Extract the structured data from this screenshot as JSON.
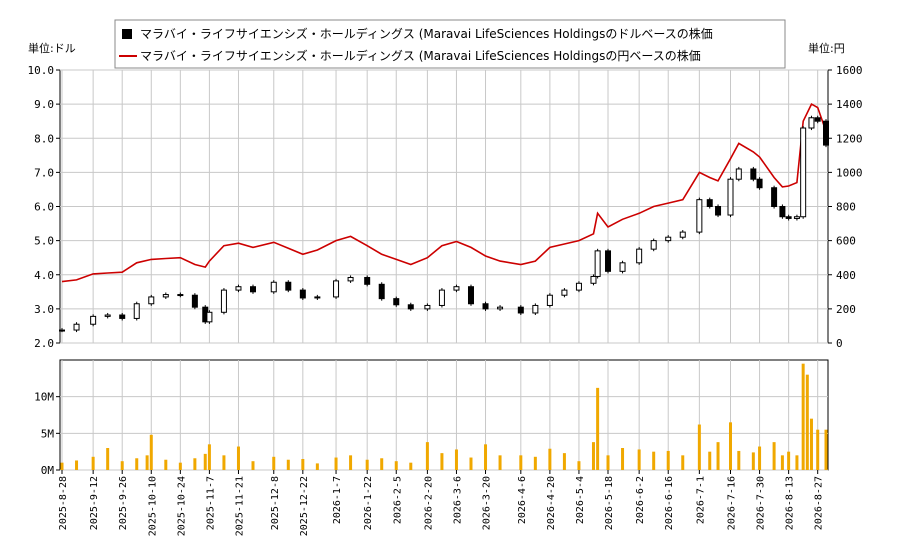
{
  "chart_data": {
    "type": "line",
    "legend": {
      "entries": [
        "マラバイ・ライフサイエンシズ・ホールディングス (Maravai LifeSciences Holdingsのドルベースの株価",
        "マラバイ・ライフサイエンシズ・ホールディングス (Maravai LifeSciences Holdingsの円ベースの株価"
      ],
      "placement": "top"
    },
    "units": {
      "left": "単位:ドル",
      "right": "単位:円"
    },
    "colors": {
      "usd_candle": "#000000",
      "jpy_line": "#cc0000",
      "volume": "#f0a800",
      "grid": "#c8c8c8"
    },
    "price_axis": {
      "ylim": [
        2.0,
        10.0
      ],
      "ticks": [
        "2.0",
        "3.0",
        "4.0",
        "5.0",
        "6.0",
        "7.0",
        "8.0",
        "9.0",
        "10.0"
      ],
      "tick_values": [
        2,
        3,
        4,
        5,
        6,
        7,
        8,
        9,
        10
      ]
    },
    "yen_axis": {
      "ylim": [
        0,
        1600
      ],
      "ticks": [
        "0",
        "200",
        "400",
        "600",
        "800",
        "1000",
        "1200",
        "1400",
        "1600"
      ],
      "tick_values": [
        0,
        200,
        400,
        600,
        800,
        1000,
        1200,
        1400,
        1600
      ]
    },
    "volume_axis": {
      "ylim": [
        0,
        15
      ],
      "ticks": [
        "0M",
        "5M",
        "10M"
      ],
      "tick_values": [
        0,
        5,
        10
      ]
    },
    "x_range": [
      "2025-08-28",
      "2026-08-31"
    ],
    "date_ticks": [
      "2025-8-28",
      "2025-9-12",
      "2025-9-26",
      "2025-10-10",
      "2025-10-24",
      "2025-11-7",
      "2025-11-21",
      "2025-12-8",
      "2025-12-22",
      "2026-1-7",
      "2026-1-22",
      "2026-2-5",
      "2026-2-20",
      "2026-3-6",
      "2026-3-20",
      "2026-4-6",
      "2026-4-20",
      "2026-5-4",
      "2026-5-18",
      "2026-6-2",
      "2026-6-16",
      "2026-7-1",
      "2026-7-16",
      "2026-7-30",
      "2026-8-13",
      "2026-8-27"
    ],
    "date_tick_values": [
      "2025-08-28",
      "2025-09-12",
      "2025-09-26",
      "2025-10-10",
      "2025-10-24",
      "2025-11-07",
      "2025-11-21",
      "2025-12-08",
      "2025-12-22",
      "2026-01-07",
      "2026-01-22",
      "2026-02-05",
      "2026-02-20",
      "2026-03-06",
      "2026-03-20",
      "2026-04-06",
      "2026-04-20",
      "2026-05-04",
      "2026-05-18",
      "2026-06-02",
      "2026-06-16",
      "2026-07-01",
      "2026-07-16",
      "2026-07-30",
      "2026-08-13",
      "2026-08-27"
    ],
    "series": [
      {
        "name": "マラバイ・ライフサイエンシズ・ホールディングス (Maravai LifeSciences Holdingsのドルベースの株価",
        "unit": "USD",
        "points": [
          [
            "2025-08-28",
            2.38
          ],
          [
            "2025-09-04",
            2.55
          ],
          [
            "2025-09-12",
            2.78
          ],
          [
            "2025-09-19",
            2.82
          ],
          [
            "2025-09-26",
            2.72
          ],
          [
            "2025-10-03",
            3.15
          ],
          [
            "2025-10-10",
            3.35
          ],
          [
            "2025-10-17",
            3.42
          ],
          [
            "2025-10-24",
            3.4
          ],
          [
            "2025-10-31",
            3.05
          ],
          [
            "2025-11-05",
            2.62
          ],
          [
            "2025-11-07",
            2.9
          ],
          [
            "2025-11-14",
            3.55
          ],
          [
            "2025-11-21",
            3.65
          ],
          [
            "2025-11-28",
            3.5
          ],
          [
            "2025-12-08",
            3.78
          ],
          [
            "2025-12-15",
            3.55
          ],
          [
            "2025-12-22",
            3.32
          ],
          [
            "2025-12-29",
            3.35
          ],
          [
            "2026-01-07",
            3.82
          ],
          [
            "2026-01-14",
            3.92
          ],
          [
            "2026-01-22",
            3.72
          ],
          [
            "2026-01-29",
            3.3
          ],
          [
            "2026-02-05",
            3.12
          ],
          [
            "2026-02-12",
            3.0
          ],
          [
            "2026-02-20",
            3.1
          ],
          [
            "2026-02-27",
            3.55
          ],
          [
            "2026-03-06",
            3.65
          ],
          [
            "2026-03-13",
            3.15
          ],
          [
            "2026-03-20",
            3.0
          ],
          [
            "2026-03-27",
            3.05
          ],
          [
            "2026-04-06",
            2.88
          ],
          [
            "2026-04-13",
            3.1
          ],
          [
            "2026-04-20",
            3.4
          ],
          [
            "2026-04-27",
            3.55
          ],
          [
            "2026-05-04",
            3.75
          ],
          [
            "2026-05-11",
            3.95
          ],
          [
            "2026-05-13",
            4.7
          ],
          [
            "2026-05-18",
            4.1
          ],
          [
            "2026-05-25",
            4.35
          ],
          [
            "2026-06-02",
            4.75
          ],
          [
            "2026-06-09",
            5.0
          ],
          [
            "2026-06-16",
            5.1
          ],
          [
            "2026-06-23",
            5.25
          ],
          [
            "2026-07-01",
            6.2
          ],
          [
            "2026-07-06",
            6.0
          ],
          [
            "2026-07-10",
            5.75
          ],
          [
            "2026-07-16",
            6.8
          ],
          [
            "2026-07-20",
            7.1
          ],
          [
            "2026-07-27",
            6.8
          ],
          [
            "2026-07-30",
            6.55
          ],
          [
            "2026-08-06",
            6.0
          ],
          [
            "2026-08-10",
            5.7
          ],
          [
            "2026-08-13",
            5.65
          ],
          [
            "2026-08-17",
            5.7
          ],
          [
            "2026-08-20",
            8.3
          ],
          [
            "2026-08-24",
            8.6
          ],
          [
            "2026-08-27",
            8.5
          ],
          [
            "2026-08-31",
            7.8
          ]
        ]
      },
      {
        "name": "マラバイ・ライフサイエンシズ・ホールディングス (Maravai LifeSciences Holdingsの円ベースの株価",
        "unit": "JPY",
        "points": [
          [
            "2025-08-28",
            360
          ],
          [
            "2025-09-04",
            370
          ],
          [
            "2025-09-12",
            405
          ],
          [
            "2025-09-19",
            410
          ],
          [
            "2025-09-26",
            415
          ],
          [
            "2025-10-03",
            470
          ],
          [
            "2025-10-10",
            490
          ],
          [
            "2025-10-17",
            495
          ],
          [
            "2025-10-24",
            500
          ],
          [
            "2025-10-31",
            460
          ],
          [
            "2025-11-05",
            445
          ],
          [
            "2025-11-07",
            480
          ],
          [
            "2025-11-14",
            570
          ],
          [
            "2025-11-21",
            585
          ],
          [
            "2025-11-28",
            560
          ],
          [
            "2025-12-08",
            590
          ],
          [
            "2025-12-15",
            555
          ],
          [
            "2025-12-22",
            520
          ],
          [
            "2025-12-29",
            545
          ],
          [
            "2026-01-07",
            600
          ],
          [
            "2026-01-14",
            625
          ],
          [
            "2026-01-22",
            570
          ],
          [
            "2026-01-29",
            520
          ],
          [
            "2026-02-05",
            490
          ],
          [
            "2026-02-12",
            460
          ],
          [
            "2026-02-20",
            500
          ],
          [
            "2026-02-27",
            570
          ],
          [
            "2026-03-06",
            595
          ],
          [
            "2026-03-13",
            560
          ],
          [
            "2026-03-20",
            510
          ],
          [
            "2026-03-27",
            480
          ],
          [
            "2026-04-06",
            460
          ],
          [
            "2026-04-13",
            480
          ],
          [
            "2026-04-20",
            560
          ],
          [
            "2026-04-27",
            580
          ],
          [
            "2026-05-04",
            600
          ],
          [
            "2026-05-11",
            640
          ],
          [
            "2026-05-13",
            760
          ],
          [
            "2026-05-18",
            680
          ],
          [
            "2026-05-25",
            725
          ],
          [
            "2026-06-02",
            760
          ],
          [
            "2026-06-09",
            800
          ],
          [
            "2026-06-16",
            820
          ],
          [
            "2026-06-23",
            840
          ],
          [
            "2026-07-01",
            1000
          ],
          [
            "2026-07-06",
            970
          ],
          [
            "2026-07-10",
            950
          ],
          [
            "2026-07-16",
            1080
          ],
          [
            "2026-07-20",
            1170
          ],
          [
            "2026-07-27",
            1120
          ],
          [
            "2026-07-30",
            1090
          ],
          [
            "2026-08-06",
            970
          ],
          [
            "2026-08-10",
            915
          ],
          [
            "2026-08-13",
            920
          ],
          [
            "2026-08-17",
            940
          ],
          [
            "2026-08-20",
            1300
          ],
          [
            "2026-08-24",
            1400
          ],
          [
            "2026-08-27",
            1380
          ],
          [
            "2026-08-31",
            1240
          ]
        ]
      },
      {
        "name": "volume",
        "unit": "M shares",
        "points": [
          [
            "2025-08-28",
            1.0
          ],
          [
            "2025-09-04",
            1.3
          ],
          [
            "2025-09-12",
            1.8
          ],
          [
            "2025-09-19",
            3.0
          ],
          [
            "2025-09-26",
            1.2
          ],
          [
            "2025-10-03",
            1.6
          ],
          [
            "2025-10-08",
            2.0
          ],
          [
            "2025-10-10",
            4.8
          ],
          [
            "2025-10-17",
            1.4
          ],
          [
            "2025-10-24",
            1.0
          ],
          [
            "2025-10-31",
            1.6
          ],
          [
            "2025-11-05",
            2.2
          ],
          [
            "2025-11-07",
            3.5
          ],
          [
            "2025-11-14",
            2.0
          ],
          [
            "2025-11-21",
            3.2
          ],
          [
            "2025-11-28",
            1.2
          ],
          [
            "2025-12-08",
            1.8
          ],
          [
            "2025-12-15",
            1.4
          ],
          [
            "2025-12-22",
            1.5
          ],
          [
            "2025-12-29",
            0.9
          ],
          [
            "2026-01-07",
            1.7
          ],
          [
            "2026-01-14",
            2.0
          ],
          [
            "2026-01-22",
            1.4
          ],
          [
            "2026-01-29",
            1.6
          ],
          [
            "2026-02-05",
            1.2
          ],
          [
            "2026-02-12",
            1.0
          ],
          [
            "2026-02-20",
            3.8
          ],
          [
            "2026-02-27",
            2.3
          ],
          [
            "2026-03-06",
            2.8
          ],
          [
            "2026-03-13",
            1.7
          ],
          [
            "2026-03-20",
            3.5
          ],
          [
            "2026-03-27",
            2.0
          ],
          [
            "2026-04-06",
            2.0
          ],
          [
            "2026-04-13",
            1.8
          ],
          [
            "2026-04-20",
            2.9
          ],
          [
            "2026-04-27",
            2.3
          ],
          [
            "2026-05-04",
            1.2
          ],
          [
            "2026-05-11",
            3.8
          ],
          [
            "2026-05-13",
            11.2
          ],
          [
            "2026-05-18",
            2.0
          ],
          [
            "2026-05-25",
            3.0
          ],
          [
            "2026-06-02",
            2.8
          ],
          [
            "2026-06-09",
            2.5
          ],
          [
            "2026-06-16",
            2.6
          ],
          [
            "2026-06-23",
            2.0
          ],
          [
            "2026-07-01",
            6.2
          ],
          [
            "2026-07-06",
            2.5
          ],
          [
            "2026-07-10",
            3.8
          ],
          [
            "2026-07-16",
            6.5
          ],
          [
            "2026-07-20",
            2.6
          ],
          [
            "2026-07-27",
            2.4
          ],
          [
            "2026-07-30",
            3.2
          ],
          [
            "2026-08-06",
            3.8
          ],
          [
            "2026-08-10",
            2.0
          ],
          [
            "2026-08-13",
            2.5
          ],
          [
            "2026-08-17",
            2.0
          ],
          [
            "2026-08-20",
            14.5
          ],
          [
            "2026-08-22",
            13.0
          ],
          [
            "2026-08-24",
            7.0
          ],
          [
            "2026-08-27",
            5.5
          ],
          [
            "2026-08-31",
            5.5
          ]
        ]
      }
    ]
  }
}
